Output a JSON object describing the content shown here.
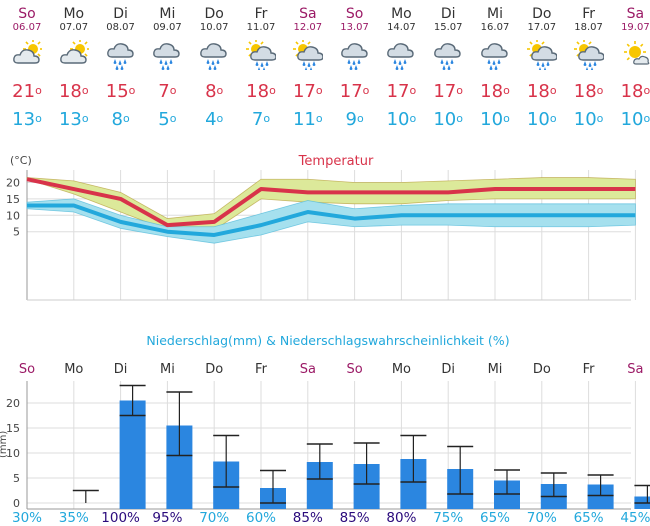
{
  "days": [
    {
      "day": "So",
      "date": "06.07",
      "weekend": true,
      "icon": "partly-cloudy-sun-icon",
      "tmax": "21",
      "tmin": "13"
    },
    {
      "day": "Mo",
      "date": "07.07",
      "weekend": false,
      "icon": "partly-cloudy-sun-icon",
      "tmax": "18",
      "tmin": "13"
    },
    {
      "day": "Di",
      "date": "08.07",
      "weekend": false,
      "icon": "rain-cloud-icon",
      "tmax": "15",
      "tmin": "8"
    },
    {
      "day": "Mi",
      "date": "09.07",
      "weekend": false,
      "icon": "rain-cloud-icon",
      "tmax": "7",
      "tmin": "5"
    },
    {
      "day": "Do",
      "date": "10.07",
      "weekend": false,
      "icon": "rain-cloud-icon",
      "tmax": "8",
      "tmin": "4"
    },
    {
      "day": "Fr",
      "date": "11.07",
      "weekend": false,
      "icon": "sun-rain-cloud-icon",
      "tmax": "18",
      "tmin": "7"
    },
    {
      "day": "Sa",
      "date": "12.07",
      "weekend": true,
      "icon": "sun-rain-cloud-icon",
      "tmax": "17",
      "tmin": "11"
    },
    {
      "day": "So",
      "date": "13.07",
      "weekend": true,
      "icon": "rain-cloud-icon",
      "tmax": "17",
      "tmin": "9"
    },
    {
      "day": "Mo",
      "date": "14.07",
      "weekend": false,
      "icon": "rain-cloud-icon",
      "tmax": "17",
      "tmin": "10"
    },
    {
      "day": "Di",
      "date": "15.07",
      "weekend": false,
      "icon": "rain-cloud-icon",
      "tmax": "17",
      "tmin": "10"
    },
    {
      "day": "Mi",
      "date": "16.07",
      "weekend": false,
      "icon": "rain-cloud-icon",
      "tmax": "18",
      "tmin": "10"
    },
    {
      "day": "Do",
      "date": "17.07",
      "weekend": false,
      "icon": "sun-rain-cloud-icon",
      "tmax": "18",
      "tmin": "10"
    },
    {
      "day": "Fr",
      "date": "18.07",
      "weekend": false,
      "icon": "sun-rain-cloud-icon",
      "tmax": "18",
      "tmin": "10"
    },
    {
      "day": "Sa",
      "date": "19.07",
      "weekend": true,
      "icon": "sunny-cloud-icon",
      "tmax": "18",
      "tmin": "10"
    }
  ],
  "colors": {
    "weekend": "#9b1a66",
    "weekday": "#333333",
    "tmax": "#d8334a",
    "tmin": "#22a8dc",
    "tmax_band": "#dce99a",
    "tmin_band": "#a5e0ee",
    "precip_bar": "#2b86e0",
    "prob": "#22a8dc",
    "prob_high": "#2a0a7c"
  },
  "chart_data": [
    {
      "type": "line",
      "title": "Temperatur",
      "ylabel": "(°C)",
      "x": [
        "06.07",
        "07.07",
        "08.07",
        "09.07",
        "10.07",
        "11.07",
        "12.07",
        "13.07",
        "14.07",
        "15.07",
        "16.07",
        "17.07",
        "18.07",
        "19.07"
      ],
      "yticks": [
        5,
        10,
        15,
        20
      ],
      "series": [
        {
          "values": [
            21,
            18,
            15,
            7,
            8,
            18,
            17,
            17,
            17,
            17,
            18,
            18,
            18,
            18
          ],
          "band_high": [
            21.5,
            20.5,
            17,
            9,
            10.5,
            21,
            21,
            20,
            20,
            20.5,
            21,
            21.5,
            21.5,
            21
          ],
          "band_low": [
            21,
            16.5,
            11,
            5.5,
            5.5,
            15,
            14,
            13.5,
            13.5,
            14.5,
            15,
            15,
            15,
            15
          ]
        },
        {
          "values": [
            13,
            13,
            8,
            5,
            4,
            7,
            11,
            9,
            10,
            10,
            10,
            10,
            10,
            10
          ],
          "band_high": [
            14,
            15,
            10,
            6.5,
            6.5,
            10.5,
            14.5,
            12,
            13,
            13.5,
            13.5,
            13.5,
            13.5,
            13.5
          ],
          "band_low": [
            12,
            11,
            6,
            3.5,
            1.5,
            4,
            8,
            6.5,
            7,
            7,
            6.5,
            6.5,
            6.5,
            7
          ]
        }
      ]
    },
    {
      "type": "bar",
      "title": "Niederschlag(mm) & Niederschlagswahrscheinlichkeit (%)",
      "ylabel": "(mm)",
      "categories": [
        "So",
        "Mo",
        "Di",
        "Mi",
        "Do",
        "Fr",
        "Sa",
        "So",
        "Mo",
        "Di",
        "Mi",
        "Do",
        "Fr",
        "Sa"
      ],
      "yticks": [
        0,
        5,
        10,
        15,
        20
      ],
      "values": [
        0,
        0,
        20.5,
        15.5,
        8.3,
        3,
        8.2,
        7.8,
        8.8,
        6.8,
        4.5,
        3.8,
        3.7,
        1.3
      ],
      "error_low": [
        0,
        0,
        17.5,
        9.5,
        3.2,
        0,
        4.8,
        3.8,
        4.2,
        1.8,
        1.8,
        1.3,
        1.5,
        0
      ],
      "error_high": [
        0,
        2.5,
        23.5,
        22.2,
        13.5,
        6.5,
        11.8,
        12,
        13.5,
        11.3,
        6.6,
        6,
        5.6,
        3.5
      ],
      "probabilities": [
        "30%",
        "35%",
        "100%",
        "95%",
        "70%",
        "60%",
        "85%",
        "85%",
        "80%",
        "75%",
        "65%",
        "70%",
        "65%",
        "45%"
      ],
      "probability_values": [
        30,
        35,
        100,
        95,
        70,
        60,
        85,
        85,
        80,
        75,
        65,
        70,
        65,
        45
      ]
    }
  ]
}
